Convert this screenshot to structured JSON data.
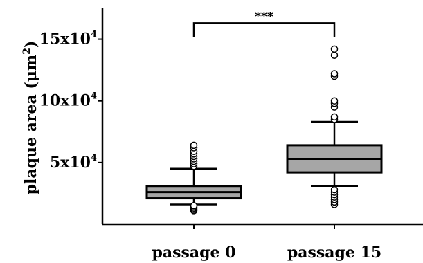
{
  "chart_data": {
    "type": "box",
    "categories": [
      "passage 0",
      "passage 15"
    ],
    "ylabel": "plaque area (μm²)",
    "ylabel_main": "plaque area (μm",
    "ylabel_sup": "2",
    "ylabel_close": ")",
    "ylim": [
      0,
      175000
    ],
    "yticks": [
      {
        "value": 50000,
        "base": "5x10",
        "exp": "4"
      },
      {
        "value": 100000,
        "base": "10x10",
        "exp": "4"
      },
      {
        "value": 150000,
        "base": "15x10",
        "exp": "4"
      }
    ],
    "boxes": [
      {
        "category": "passage 0",
        "whisker_low": 16000,
        "q1": 21000,
        "median": 26000,
        "q3": 31000,
        "whisker_high": 45000,
        "outliers": [
          11000,
          12000,
          13000,
          14000,
          15000,
          47000,
          49000,
          51000,
          53000,
          55000,
          57000,
          59000,
          62000,
          64000
        ]
      },
      {
        "category": "passage 15",
        "whisker_low": 31000,
        "q1": 42000,
        "median": 53000,
        "q3": 64000,
        "whisker_high": 83000,
        "outliers": [
          16000,
          18000,
          20000,
          22000,
          24000,
          26000,
          28000,
          85000,
          87000,
          95000,
          98000,
          100000,
          120000,
          122000,
          137000,
          142000
        ]
      }
    ],
    "significance": {
      "between": [
        "passage 0",
        "passage 15"
      ],
      "label": "***",
      "y": 163000
    },
    "colors": {
      "box_fill": "#a6a6a6",
      "stroke": "#000000"
    }
  }
}
